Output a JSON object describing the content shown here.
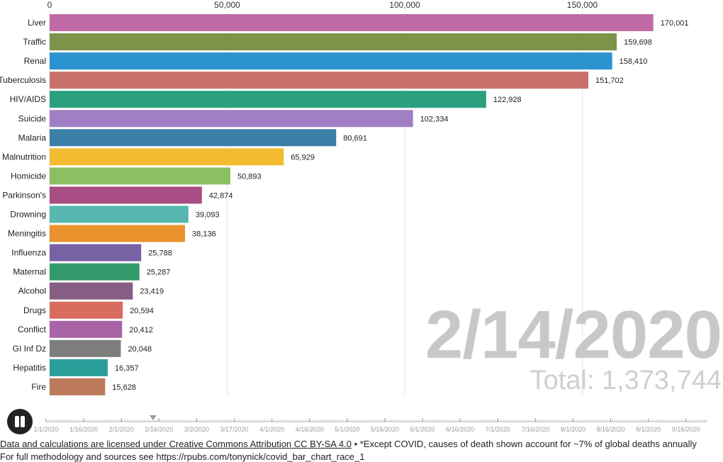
{
  "chart_data": {
    "type": "bar",
    "orientation": "horizontal",
    "xlim": [
      0,
      175000
    ],
    "xticks": [
      0,
      50000,
      100000,
      150000
    ],
    "xtick_labels": [
      "0",
      "50,000",
      "100,000",
      "150,000"
    ],
    "grid": true,
    "categories": [
      "Liver",
      "Traffic",
      "Renal",
      "Tuberculosis",
      "HIV/AIDS",
      "Suicide",
      "Malaria",
      "Malnutrition",
      "Homicide",
      "Parkinson's",
      "Drowning",
      "Meningitis",
      "Influenza",
      "Maternal",
      "Alcohol",
      "Drugs",
      "Conflict",
      "GI Inf Dz",
      "Hepatitis",
      "Fire"
    ],
    "values": [
      170001,
      159698,
      158410,
      151702,
      122928,
      102334,
      80691,
      65929,
      50893,
      42874,
      39093,
      38136,
      25788,
      25287,
      23419,
      20594,
      20412,
      20048,
      16357,
      15628
    ],
    "value_labels": [
      "170,001",
      "159,698",
      "158,410",
      "151,702",
      "122,928",
      "102,334",
      "80,691",
      "65,929",
      "50,893",
      "42,874",
      "39,093",
      "38,136",
      "25,788",
      "25,287",
      "23,419",
      "20,594",
      "20,412",
      "20,048",
      "16,357",
      "15,628"
    ],
    "colors": [
      "#c06aa5",
      "#7b944a",
      "#2a93d0",
      "#c8706a",
      "#2aa07f",
      "#a07fc4",
      "#3b7ea8",
      "#f2bb30",
      "#8cbf63",
      "#a84d83",
      "#57b8b0",
      "#ea922e",
      "#7762a5",
      "#339a6b",
      "#875d84",
      "#d96c5e",
      "#a963a6",
      "#7d7d7d",
      "#2b9e9a",
      "#bd7a5a"
    ]
  },
  "overlay": {
    "date": "2/14/2020",
    "total": "Total: 1,373,744"
  },
  "timeline": {
    "labels": [
      "1/1/2020",
      "1/16/2020",
      "2/1/2020",
      "2/16/2020",
      "3/2/2020",
      "3/17/2020",
      "4/1/2020",
      "4/16/2020",
      "5/1/2020",
      "5/16/2020",
      "6/1/2020",
      "6/16/2020",
      "7/1/2020",
      "7/16/2020",
      "8/1/2020",
      "8/16/2020",
      "9/1/2020",
      "9/16/2020"
    ],
    "current_fraction": 0.162
  },
  "controls": {
    "play_state": "pause-icon"
  },
  "footer": {
    "license_link": "Data and calculations are licensed under Creative Commons Attribution CC BY-SA 4.0",
    "note": " • *Except COVID, causes of death shown account for ~7% of global deaths annually",
    "sources": "For full methodology and sources see https://rpubs.com/tonynick/covid_bar_chart_race_1"
  }
}
